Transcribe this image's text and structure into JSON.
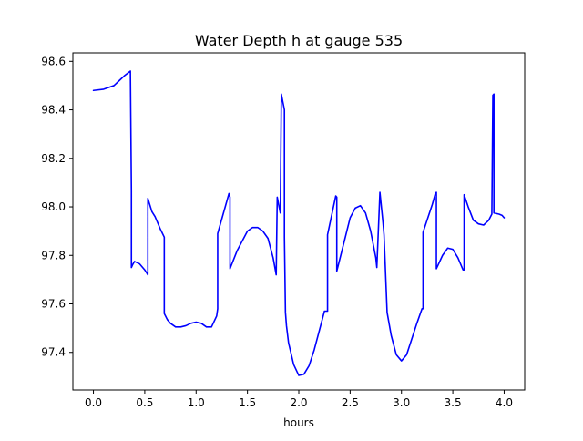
{
  "chart_data": {
    "type": "line",
    "title": "Water Depth h at gauge 535",
    "xlabel": "hours",
    "ylabel": "",
    "xlim": [
      -0.2,
      4.2
    ],
    "ylim": [
      97.245,
      98.635
    ],
    "xticks": [
      0.0,
      0.5,
      1.0,
      1.5,
      2.0,
      2.5,
      3.0,
      3.5,
      4.0
    ],
    "xtick_labels": [
      "0.0",
      "0.5",
      "1.0",
      "1.5",
      "2.0",
      "2.5",
      "3.0",
      "3.5",
      "4.0"
    ],
    "yticks": [
      97.4,
      97.6,
      97.8,
      98.0,
      98.2,
      98.4,
      98.6
    ],
    "ytick_labels": [
      "97.4",
      "97.6",
      "97.8",
      "98.0",
      "98.2",
      "98.4",
      "98.6"
    ],
    "grid": false,
    "legend": "none",
    "series": [
      {
        "name": "",
        "color": "#0000ff",
        "x": [
          0.0,
          0.1,
          0.2,
          0.25,
          0.3,
          0.36,
          0.37,
          0.37,
          0.38,
          0.4,
          0.45,
          0.5,
          0.53,
          0.53,
          0.57,
          0.6,
          0.65,
          0.69,
          0.69,
          0.72,
          0.75,
          0.8,
          0.85,
          0.9,
          0.95,
          1.0,
          1.05,
          1.1,
          1.15,
          1.2,
          1.21,
          1.21,
          1.32,
          1.33,
          1.33,
          1.4,
          1.5,
          1.55,
          1.6,
          1.65,
          1.7,
          1.75,
          1.78,
          1.79,
          1.82,
          1.83,
          1.86,
          1.86,
          1.87,
          1.88,
          1.9,
          1.95,
          2.0,
          2.05,
          2.1,
          2.15,
          2.2,
          2.25,
          2.28,
          2.28,
          2.36,
          2.37,
          2.37,
          2.45,
          2.5,
          2.55,
          2.6,
          2.65,
          2.7,
          2.75,
          2.76,
          2.79,
          2.82,
          2.83,
          2.86,
          2.9,
          2.95,
          3.0,
          3.05,
          3.1,
          3.15,
          3.2,
          3.21,
          3.21,
          3.3,
          3.33,
          3.34,
          3.34,
          3.4,
          3.45,
          3.5,
          3.55,
          3.6,
          3.61,
          3.61,
          3.65,
          3.7,
          3.75,
          3.8,
          3.85,
          3.88,
          3.89,
          3.9,
          3.9,
          3.95,
          3.98,
          4.0
        ],
        "y": [
          98.48,
          98.485,
          98.5,
          98.52,
          98.54,
          98.56,
          98.065,
          97.75,
          97.76,
          97.775,
          97.765,
          97.74,
          97.72,
          98.035,
          97.98,
          97.96,
          97.91,
          97.875,
          97.56,
          97.535,
          97.52,
          97.505,
          97.505,
          97.51,
          97.52,
          97.525,
          97.52,
          97.505,
          97.505,
          97.55,
          97.58,
          97.89,
          98.055,
          98.04,
          97.745,
          97.82,
          97.9,
          97.915,
          97.915,
          97.9,
          97.87,
          97.79,
          97.72,
          98.04,
          97.975,
          98.465,
          98.4,
          97.875,
          97.565,
          97.51,
          97.44,
          97.35,
          97.305,
          97.31,
          97.345,
          97.41,
          97.49,
          97.57,
          97.57,
          97.885,
          98.045,
          98.04,
          97.735,
          97.87,
          97.955,
          97.995,
          98.005,
          97.975,
          97.9,
          97.79,
          97.75,
          98.06,
          97.935,
          97.885,
          97.565,
          97.47,
          97.39,
          97.365,
          97.39,
          97.455,
          97.52,
          97.58,
          97.58,
          97.895,
          98.01,
          98.055,
          98.06,
          97.745,
          97.8,
          97.83,
          97.825,
          97.79,
          97.74,
          97.74,
          98.05,
          98.0,
          97.945,
          97.93,
          97.925,
          97.945,
          97.97,
          98.46,
          98.465,
          97.975,
          97.97,
          97.965,
          97.955
        ]
      }
    ]
  }
}
